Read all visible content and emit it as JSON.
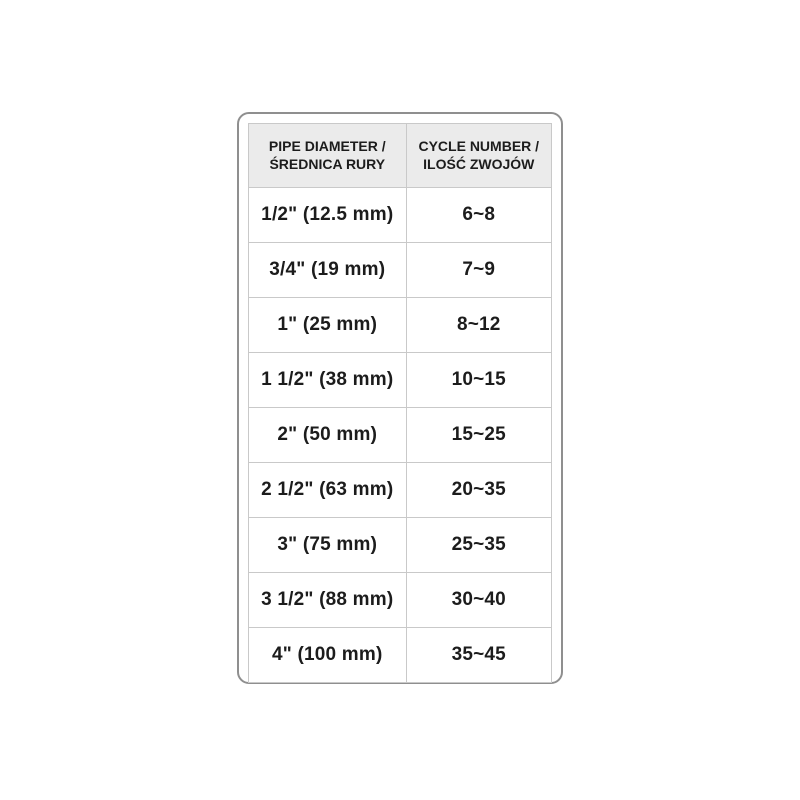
{
  "table": {
    "headers": [
      {
        "line1": "PIPE DIAMETER /",
        "line2": "ŚREDNICA RURY"
      },
      {
        "line1": "CYCLE NUMBER /",
        "line2": "ILOŚĆ ZWOJÓW"
      }
    ],
    "rows": [
      {
        "diameter": "1/2\" (12.5 mm)",
        "cycles": "6~8"
      },
      {
        "diameter": "3/4\" (19 mm)",
        "cycles": "7~9"
      },
      {
        "diameter": "1\" (25 mm)",
        "cycles": "8~12"
      },
      {
        "diameter": "1 1/2\" (38 mm)",
        "cycles": "10~15"
      },
      {
        "diameter": "2\" (50 mm)",
        "cycles": "15~25"
      },
      {
        "diameter": "2 1/2\" (63 mm)",
        "cycles": "20~35"
      },
      {
        "diameter": "3\" (75 mm)",
        "cycles": "25~35"
      },
      {
        "diameter": "3 1/2\" (88 mm)",
        "cycles": "30~40"
      },
      {
        "diameter": "4\" (100 mm)",
        "cycles": "35~45"
      }
    ],
    "colors": {
      "header_bg": "#ebebeb",
      "cell_border": "#c9c9c9",
      "card_border": "#8f8f8f",
      "text": "#1c1c1c",
      "page_bg": "#ffffff"
    }
  }
}
